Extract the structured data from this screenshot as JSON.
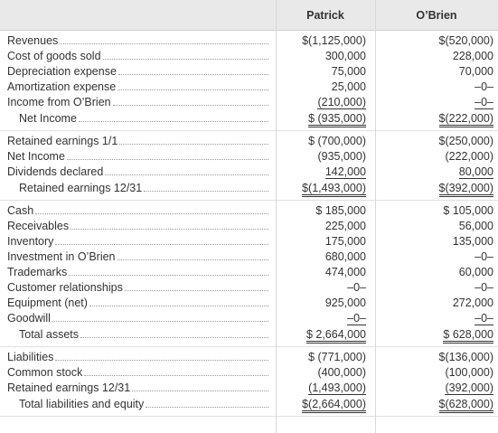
{
  "header": {
    "columns": [
      "Patrick",
      "O’Brien"
    ]
  },
  "sections": [
    {
      "rows": [
        [
          "Revenues",
          "$(1,125,000)",
          "$(520,000)"
        ],
        [
          "Cost of goods sold",
          "300,000",
          "228,000"
        ],
        [
          "Depreciation expense",
          "75,000",
          "70,000"
        ],
        [
          "Amortization expense",
          "25,000",
          "–0–"
        ],
        [
          "Income from O’Brien",
          "(210,000)",
          "–0–"
        ],
        [
          "Net Income",
          "$ (935,000)",
          "$(222,000)"
        ]
      ]
    },
    {
      "rows": [
        [
          "Retained earnings 1/1",
          "$ (700,000)",
          "$(250,000)"
        ],
        [
          "Net Income",
          "(935,000)",
          "(222,000)"
        ],
        [
          "Dividends declared",
          "142,000",
          "80,000"
        ],
        [
          "Retained earnings 12/31",
          "$(1,493,000)",
          "$(392,000)"
        ]
      ]
    },
    {
      "rows": [
        [
          "Cash",
          "$ 185,000",
          "$ 105,000"
        ],
        [
          "Receivables",
          "225,000",
          "56,000"
        ],
        [
          "Inventory",
          "175,000",
          "135,000"
        ],
        [
          "Investment in O’Brien",
          "680,000",
          "–0–"
        ],
        [
          "Trademarks",
          "474,000",
          "60,000"
        ],
        [
          "Customer relationships",
          "–0–",
          "–0–"
        ],
        [
          "Equipment (net)",
          "925,000",
          "272,000"
        ],
        [
          "Goodwill",
          "–0–",
          "–0–"
        ],
        [
          "Total assets",
          "$ 2,664,000",
          "$ 628,000"
        ]
      ]
    },
    {
      "rows": [
        [
          "Liabilities",
          "$ (771,000)",
          "$(136,000)"
        ],
        [
          "Common stock",
          "(400,000)",
          "(100,000)"
        ],
        [
          "Retained earnings 12/31",
          "(1,493,000)",
          "(392,000)"
        ],
        [
          "Total liabilities and equity",
          "$(2,664,000)",
          "$(628,000)"
        ]
      ]
    }
  ]
}
